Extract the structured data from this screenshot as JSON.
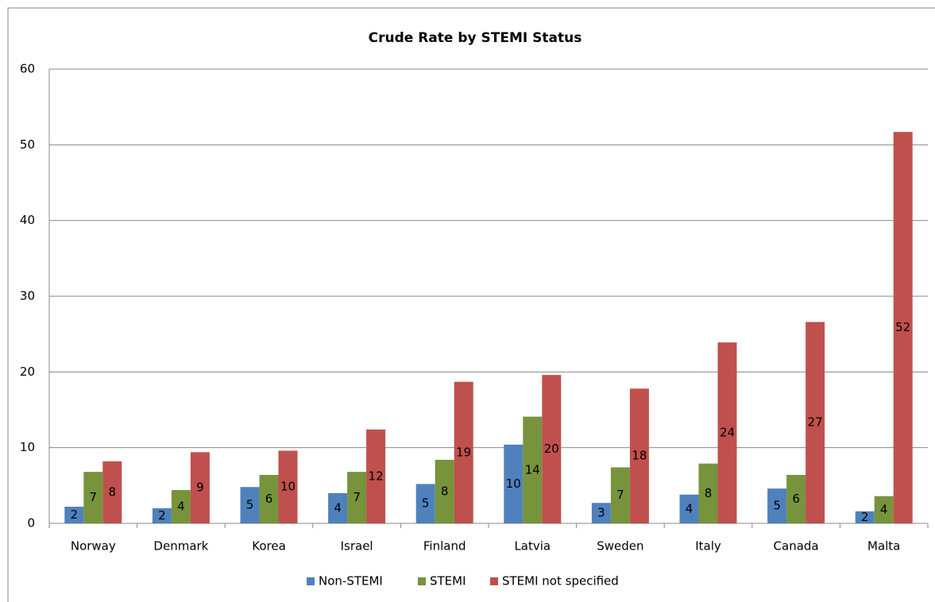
{
  "chart_data": {
    "type": "bar",
    "title": "Crude Rate by STEMI Status",
    "categories": [
      "Norway",
      "Denmark",
      "Korea",
      "Israel",
      "Finland",
      "Latvia",
      "Sweden",
      "Italy",
      "Canada",
      "Malta"
    ],
    "series": [
      {
        "name": "Non-STEMI",
        "color": "#4f81bd",
        "values": [
          2.2,
          2.0,
          4.8,
          4.0,
          5.2,
          10.4,
          2.7,
          3.8,
          4.6,
          1.6
        ],
        "value_labels": [
          "2",
          "2",
          "5",
          "4",
          "5",
          "10",
          "3",
          "4",
          "5",
          "2"
        ]
      },
      {
        "name": "STEMI",
        "color": "#77933c",
        "values": [
          6.8,
          4.4,
          6.4,
          6.8,
          8.4,
          14.1,
          7.4,
          7.9,
          6.4,
          3.6
        ],
        "value_labels": [
          "7",
          "4",
          "6",
          "7",
          "8",
          "14",
          "7",
          "8",
          "6",
          "4"
        ]
      },
      {
        "name": "STEMI not specified",
        "color": "#c0504d",
        "values": [
          8.2,
          9.4,
          9.6,
          12.4,
          18.7,
          19.6,
          17.8,
          23.9,
          26.6,
          51.7
        ],
        "value_labels": [
          "8",
          "9",
          "10",
          "12",
          "19",
          "20",
          "18",
          "24",
          "27",
          "52"
        ]
      }
    ],
    "ylim": [
      0,
      60
    ],
    "yticks": [
      0,
      10,
      20,
      30,
      40,
      50,
      60
    ],
    "grid": true,
    "legend": "bottom"
  }
}
